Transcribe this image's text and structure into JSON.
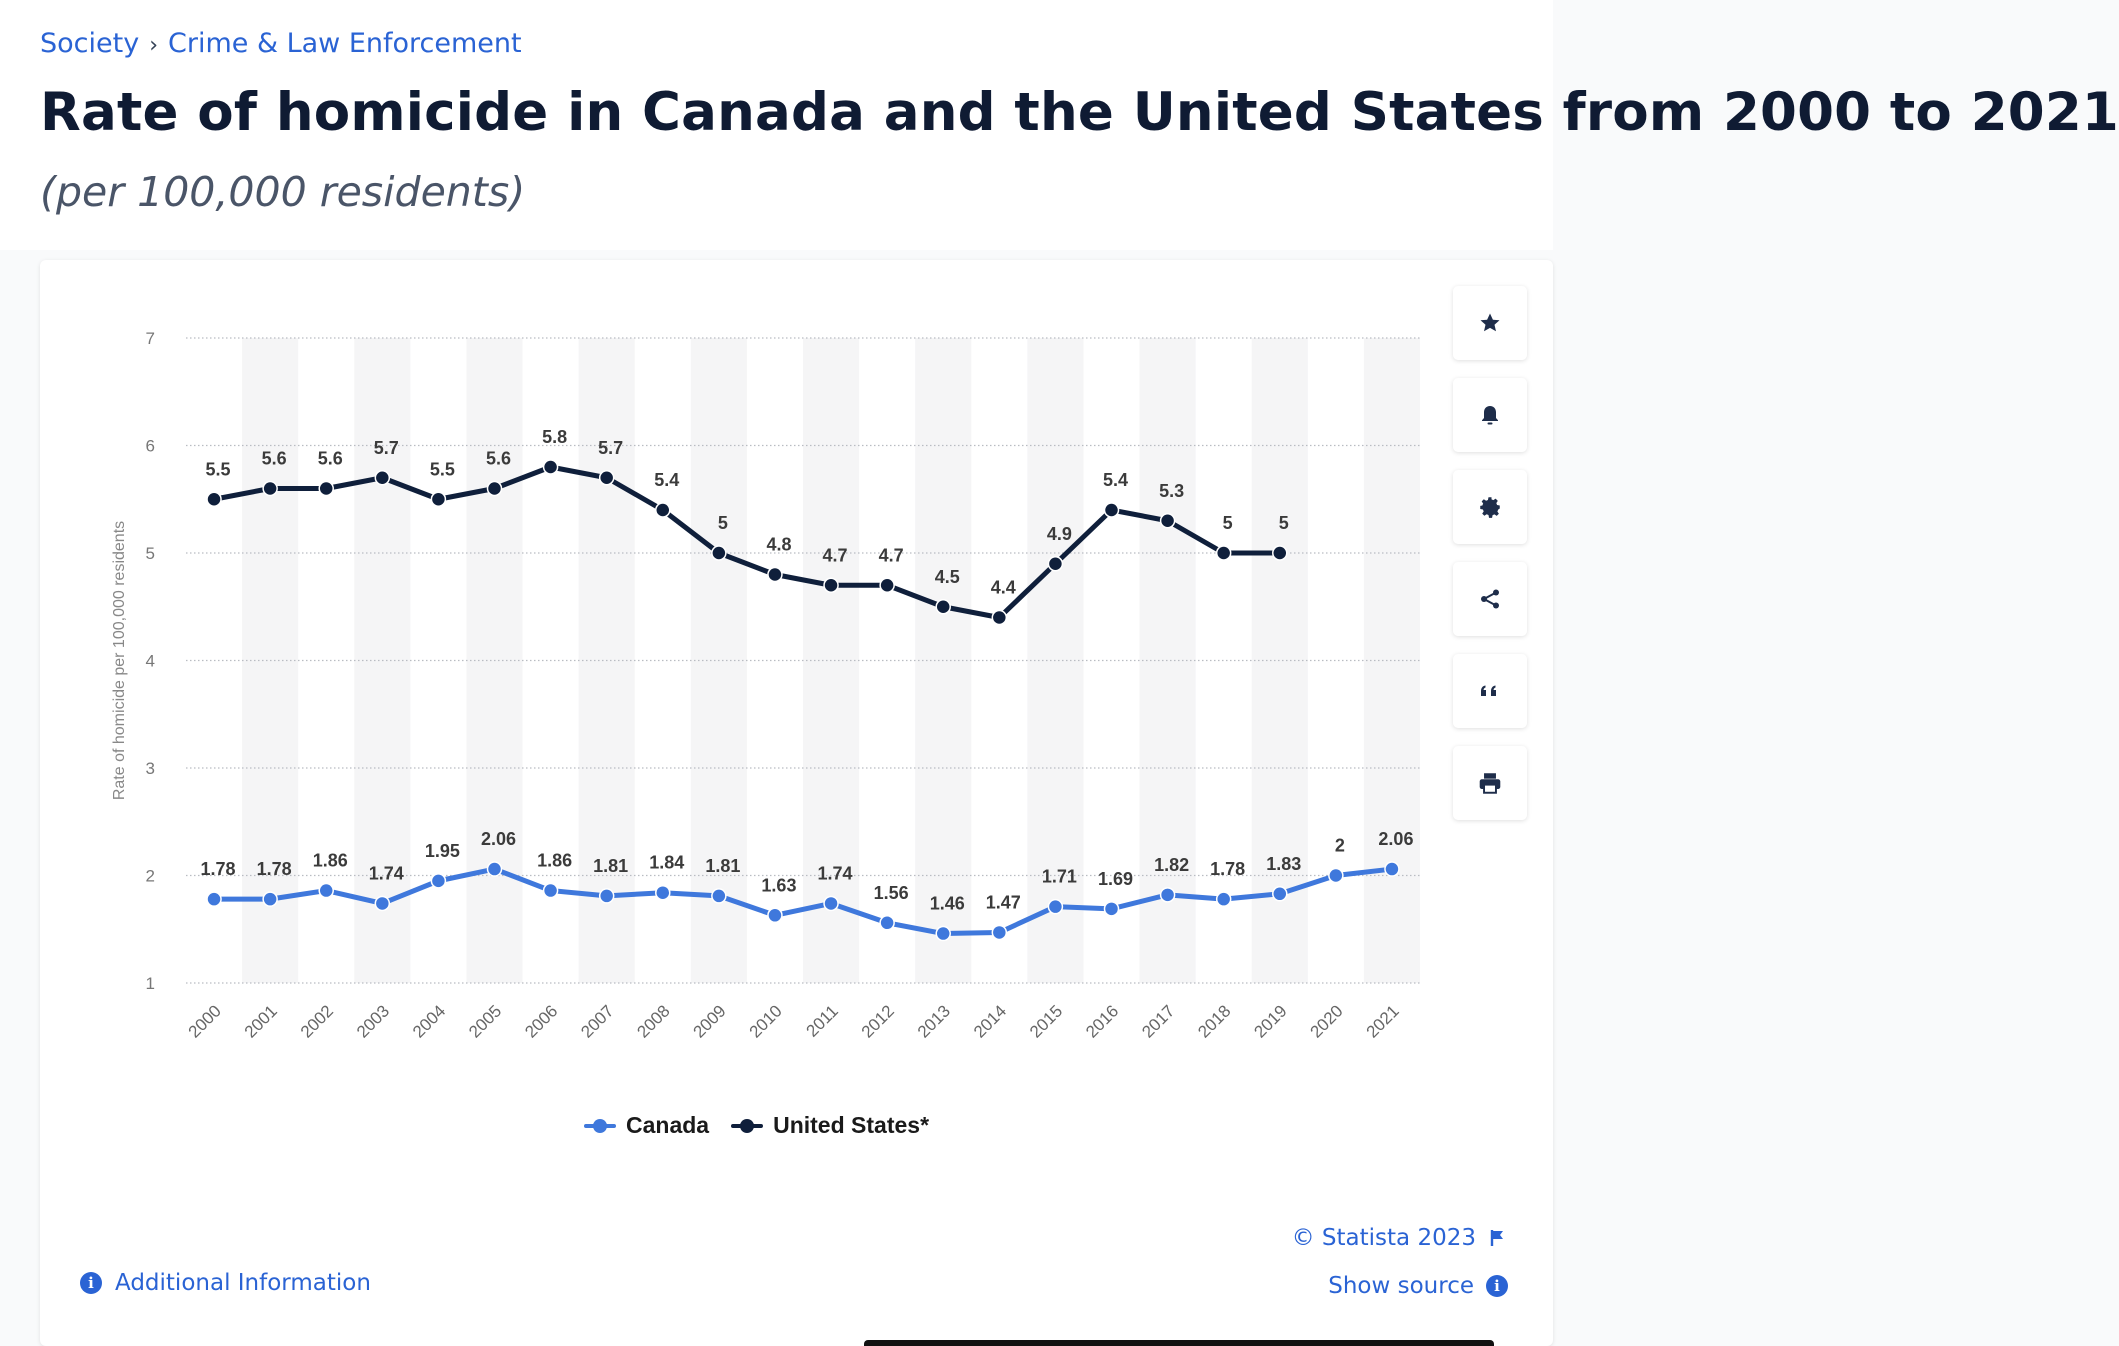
{
  "breadcrumb": {
    "section": "Society",
    "separator": "›",
    "topic": "Crime & Law Enforcement"
  },
  "page": {
    "title": "Rate of homicide in Canada and the United States from 2000 to 2021",
    "subtitle": "(per 100,000 residents)"
  },
  "tools": [
    "star-icon",
    "bell-icon",
    "gear-icon",
    "share-icon",
    "quote-icon",
    "print-icon"
  ],
  "footer": {
    "additional_info": "Additional Information",
    "copyright": "© Statista 2023",
    "show_source": "Show source"
  },
  "colors": {
    "canada": "#3f78dc",
    "us": "#0f1f3b",
    "link": "#2a63d4"
  },
  "chart_data": {
    "type": "line",
    "title": "",
    "xlabel": "",
    "ylabel": "Rate of homicide per 100,000 residents",
    "ylim": [
      1,
      7
    ],
    "yticks": [
      1,
      2,
      3,
      4,
      5,
      6,
      7
    ],
    "grid": true,
    "legend_position": "bottom",
    "x": [
      "2000",
      "2001",
      "2002",
      "2003",
      "2004",
      "2005",
      "2006",
      "2007",
      "2008",
      "2009",
      "2010",
      "2011",
      "2012",
      "2013",
      "2014",
      "2015",
      "2016",
      "2017",
      "2018",
      "2019",
      "2020",
      "2021"
    ],
    "series": [
      {
        "name": "Canada",
        "values": [
          1.78,
          1.78,
          1.86,
          1.74,
          1.95,
          2.06,
          1.86,
          1.81,
          1.84,
          1.81,
          1.63,
          1.74,
          1.56,
          1.46,
          1.47,
          1.71,
          1.69,
          1.82,
          1.78,
          1.83,
          2,
          2.06
        ]
      },
      {
        "name": "United States*",
        "values": [
          5.5,
          5.6,
          5.6,
          5.7,
          5.5,
          5.6,
          5.8,
          5.7,
          5.4,
          5,
          4.8,
          4.7,
          4.7,
          4.5,
          4.4,
          4.9,
          5.4,
          5.3,
          5,
          5,
          null,
          null
        ]
      }
    ]
  }
}
